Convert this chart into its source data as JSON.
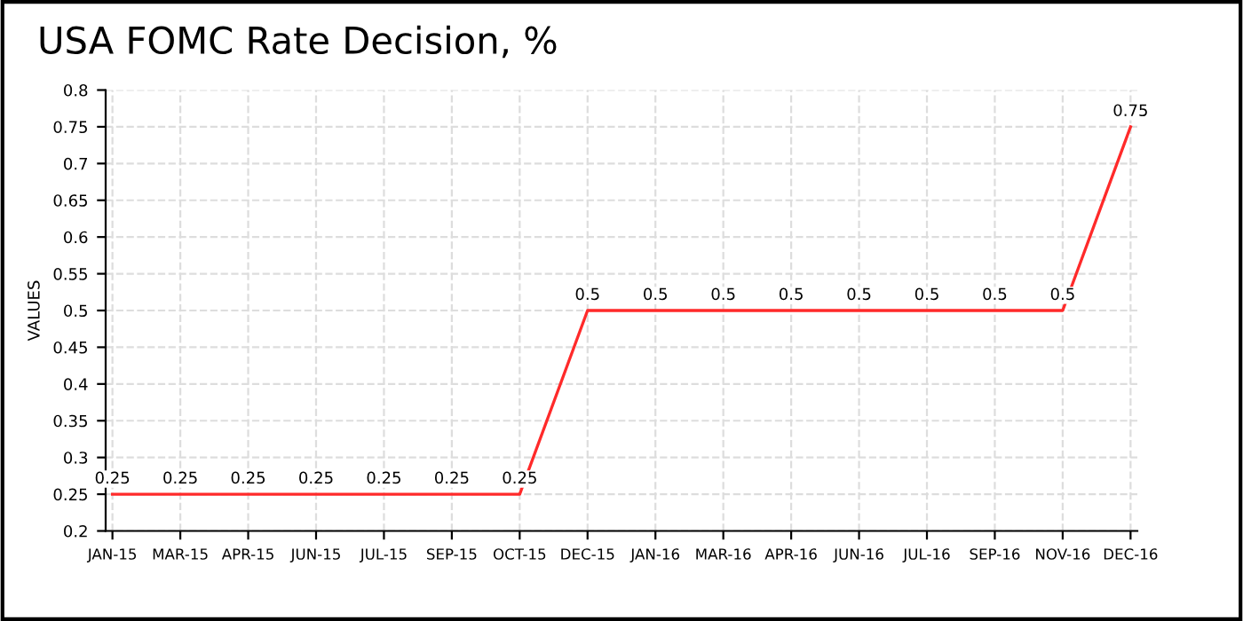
{
  "chart_data": {
    "type": "line",
    "title": "USA FOMC Rate Decision, %",
    "ylabel": "VALUES",
    "categories": [
      "JAN-15",
      "MAR-15",
      "APR-15",
      "JUN-15",
      "JUL-15",
      "SEP-15",
      "OCT-15",
      "DEC-15",
      "JAN-16",
      "MAR-16",
      "APR-16",
      "JUN-16",
      "JUL-16",
      "SEP-16",
      "NOV-16",
      "DEC-16"
    ],
    "series": [
      {
        "color": "#ff2a2a",
        "values": [
          0.25,
          0.25,
          0.25,
          0.25,
          0.25,
          0.25,
          0.25,
          0.5,
          0.5,
          0.5,
          0.5,
          0.5,
          0.5,
          0.5,
          0.5,
          0.75
        ]
      }
    ],
    "ylim": [
      0.2,
      0.8
    ],
    "yticks": [
      0.2,
      0.25,
      0.3,
      0.35,
      0.4,
      0.45,
      0.5,
      0.55,
      0.6,
      0.65,
      0.7,
      0.75,
      0.8
    ],
    "grid": true,
    "data_labels": true,
    "marker": "none",
    "line_style": "solid"
  }
}
